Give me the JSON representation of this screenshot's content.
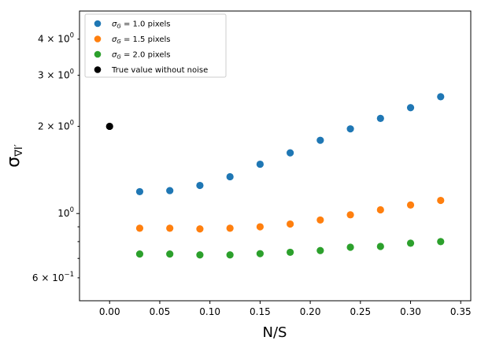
{
  "chart_data": {
    "type": "scatter",
    "title": "",
    "xlabel": "N/S",
    "ylabel": "σ",
    "ylabel_subscript": "∇I′",
    "xlim": [
      -0.03,
      0.36
    ],
    "ylim": [
      0.5,
      5.0
    ],
    "yscale": "log",
    "grid": false,
    "legend_position": "top-left",
    "x_ticks": [
      0.0,
      0.05,
      0.1,
      0.15,
      0.2,
      0.25,
      0.3,
      0.35
    ],
    "x_tick_labels": [
      "0.00",
      "0.05",
      "0.10",
      "0.15",
      "0.20",
      "0.25",
      "0.30",
      "0.35"
    ],
    "y_major_ticks": [
      1.0
    ],
    "y_labeled_minor_ticks": [
      {
        "value": 0.6,
        "mantissa": "6",
        "exp": "−1"
      },
      {
        "value": 2.0,
        "mantissa": "2",
        "exp": "0"
      },
      {
        "value": 3.0,
        "mantissa": "3",
        "exp": "0"
      },
      {
        "value": 4.0,
        "mantissa": "4",
        "exp": "0"
      }
    ],
    "y_unlabeled_minor_ticks": [
      0.7,
      0.8,
      0.9
    ],
    "y_major_labels": [
      {
        "value": 1.0,
        "mantissa": "10",
        "exp": "0"
      }
    ],
    "series": [
      {
        "name": "σG = 1.0 pixels",
        "legend_var": "σ",
        "legend_sub": "G",
        "legend_rest": " = 1.0 pixels",
        "color": "#1f77b4",
        "x": [
          0.03,
          0.06,
          0.09,
          0.12,
          0.15,
          0.18,
          0.21,
          0.24,
          0.27,
          0.3,
          0.33
        ],
        "y": [
          1.19,
          1.2,
          1.25,
          1.34,
          1.48,
          1.62,
          1.79,
          1.96,
          2.13,
          2.32,
          2.53
        ]
      },
      {
        "name": "σG = 1.5 pixels",
        "legend_var": "σ",
        "legend_sub": "G",
        "legend_rest": " = 1.5 pixels",
        "color": "#ff7f0e",
        "x": [
          0.03,
          0.06,
          0.09,
          0.12,
          0.15,
          0.18,
          0.21,
          0.24,
          0.27,
          0.3,
          0.33
        ],
        "y": [
          0.89,
          0.89,
          0.885,
          0.89,
          0.9,
          0.92,
          0.95,
          0.99,
          1.03,
          1.07,
          1.11
        ]
      },
      {
        "name": "σG = 2.0 pixels",
        "legend_var": "σ",
        "legend_sub": "G",
        "legend_rest": " = 2.0 pixels",
        "color": "#2ca02c",
        "x": [
          0.03,
          0.06,
          0.09,
          0.12,
          0.15,
          0.18,
          0.21,
          0.24,
          0.27,
          0.3,
          0.33
        ],
        "y": [
          0.725,
          0.725,
          0.72,
          0.72,
          0.727,
          0.735,
          0.745,
          0.765,
          0.77,
          0.79,
          0.8
        ]
      },
      {
        "name": "True value without noise",
        "legend_var": "",
        "legend_sub": "",
        "legend_rest": "True value without noise",
        "color": "#000000",
        "x": [
          0.0
        ],
        "y": [
          2.0
        ]
      }
    ]
  }
}
